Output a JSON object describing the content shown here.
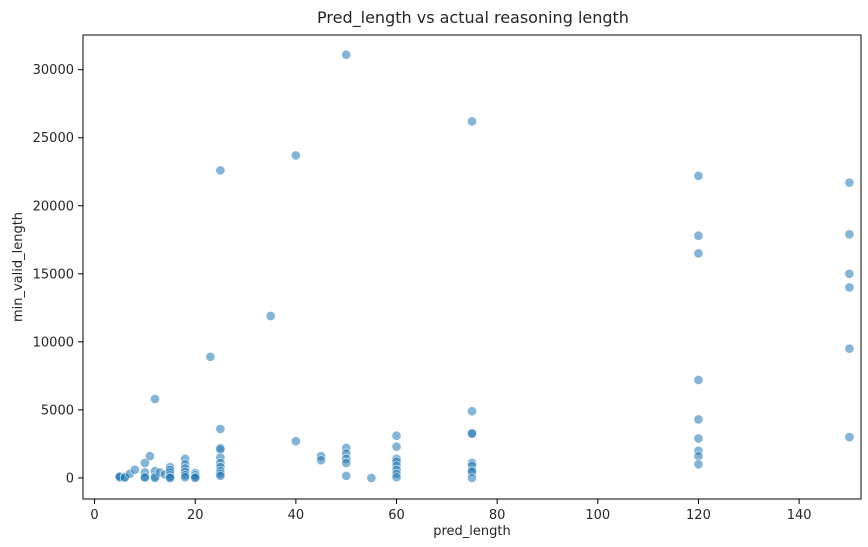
{
  "chart_data": {
    "type": "scatter",
    "title": "Pred_length vs actual reasoning length",
    "xlabel": "pred_length",
    "ylabel": "min_valid_length",
    "xlim": [
      -2.3,
      152.3
    ],
    "ylim": [
      -1550,
      32550
    ],
    "xticks": [
      0,
      20,
      40,
      60,
      80,
      100,
      120,
      140
    ],
    "yticks": [
      0,
      5000,
      10000,
      15000,
      20000,
      25000,
      30000
    ],
    "grid": false,
    "legend": "none",
    "marker_color": "#1f77b4",
    "points": [
      {
        "x": 5,
        "y": 0
      },
      {
        "x": 5,
        "y": 50
      },
      {
        "x": 5,
        "y": 100
      },
      {
        "x": 6,
        "y": 80
      },
      {
        "x": 6,
        "y": 20
      },
      {
        "x": 7,
        "y": 300
      },
      {
        "x": 8,
        "y": 600
      },
      {
        "x": 10,
        "y": 1100
      },
      {
        "x": 10,
        "y": 400
      },
      {
        "x": 10,
        "y": 0
      },
      {
        "x": 10,
        "y": 50
      },
      {
        "x": 11,
        "y": 1600
      },
      {
        "x": 12,
        "y": 5800
      },
      {
        "x": 12,
        "y": 500
      },
      {
        "x": 12,
        "y": 100
      },
      {
        "x": 12,
        "y": 0
      },
      {
        "x": 13,
        "y": 400
      },
      {
        "x": 14,
        "y": 250
      },
      {
        "x": 15,
        "y": 800
      },
      {
        "x": 15,
        "y": 600
      },
      {
        "x": 15,
        "y": 400
      },
      {
        "x": 15,
        "y": 200
      },
      {
        "x": 15,
        "y": 50
      },
      {
        "x": 15,
        "y": 0
      },
      {
        "x": 18,
        "y": 1400
      },
      {
        "x": 18,
        "y": 1000
      },
      {
        "x": 18,
        "y": 700
      },
      {
        "x": 18,
        "y": 450
      },
      {
        "x": 18,
        "y": 200
      },
      {
        "x": 18,
        "y": 50
      },
      {
        "x": 20,
        "y": 350
      },
      {
        "x": 20,
        "y": 200
      },
      {
        "x": 20,
        "y": 80
      },
      {
        "x": 20,
        "y": 0
      },
      {
        "x": 23,
        "y": 8900
      },
      {
        "x": 25,
        "y": 22600
      },
      {
        "x": 25,
        "y": 3600
      },
      {
        "x": 25,
        "y": 2200
      },
      {
        "x": 25,
        "y": 2100
      },
      {
        "x": 25,
        "y": 1500
      },
      {
        "x": 25,
        "y": 1100
      },
      {
        "x": 25,
        "y": 800
      },
      {
        "x": 25,
        "y": 500
      },
      {
        "x": 25,
        "y": 300
      },
      {
        "x": 25,
        "y": 150
      },
      {
        "x": 35,
        "y": 11900
      },
      {
        "x": 40,
        "y": 23700
      },
      {
        "x": 40,
        "y": 2700
      },
      {
        "x": 45,
        "y": 1600
      },
      {
        "x": 45,
        "y": 1300
      },
      {
        "x": 50,
        "y": 31100
      },
      {
        "x": 50,
        "y": 2200
      },
      {
        "x": 50,
        "y": 1800
      },
      {
        "x": 50,
        "y": 1400
      },
      {
        "x": 50,
        "y": 1100
      },
      {
        "x": 50,
        "y": 150
      },
      {
        "x": 55,
        "y": 0
      },
      {
        "x": 60,
        "y": 3100
      },
      {
        "x": 60,
        "y": 2300
      },
      {
        "x": 60,
        "y": 1400
      },
      {
        "x": 60,
        "y": 1200
      },
      {
        "x": 60,
        "y": 900
      },
      {
        "x": 60,
        "y": 600
      },
      {
        "x": 60,
        "y": 300
      },
      {
        "x": 60,
        "y": 50
      },
      {
        "x": 75,
        "y": 26200
      },
      {
        "x": 75,
        "y": 4900
      },
      {
        "x": 75,
        "y": 3300
      },
      {
        "x": 75,
        "y": 3250
      },
      {
        "x": 75,
        "y": 1100
      },
      {
        "x": 75,
        "y": 900
      },
      {
        "x": 75,
        "y": 550
      },
      {
        "x": 75,
        "y": 450
      },
      {
        "x": 75,
        "y": 0
      },
      {
        "x": 120,
        "y": 22200
      },
      {
        "x": 120,
        "y": 17800
      },
      {
        "x": 120,
        "y": 16500
      },
      {
        "x": 120,
        "y": 7200
      },
      {
        "x": 120,
        "y": 4300
      },
      {
        "x": 120,
        "y": 2900
      },
      {
        "x": 120,
        "y": 2000
      },
      {
        "x": 120,
        "y": 1600
      },
      {
        "x": 120,
        "y": 1000
      },
      {
        "x": 150,
        "y": 21700
      },
      {
        "x": 150,
        "y": 17900
      },
      {
        "x": 150,
        "y": 15000
      },
      {
        "x": 150,
        "y": 14000
      },
      {
        "x": 150,
        "y": 9500
      },
      {
        "x": 150,
        "y": 3000
      }
    ]
  }
}
